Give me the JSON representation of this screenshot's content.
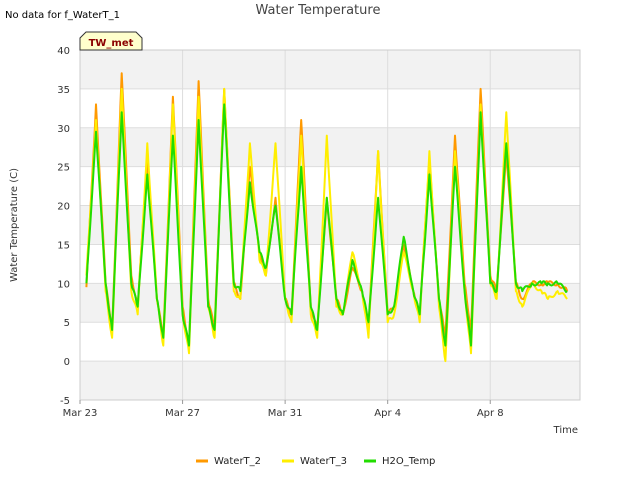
{
  "corner_note": "No data for f_WaterT_1",
  "badge": "TW_met",
  "chart_data": {
    "type": "line",
    "title": "Water Temperature",
    "xlabel": "Time",
    "ylabel": "Water Temperature (C)",
    "ylim": [
      -5,
      40
    ],
    "xlim": [
      "2023-03-23T00:00",
      "2023-04-11T12:00"
    ],
    "y_ticks": [
      "-5",
      "0",
      "5",
      "10",
      "15",
      "20",
      "25",
      "30",
      "35",
      "40"
    ],
    "x_ticks": [
      {
        "label": "Mar 23",
        "date": "2023-03-23"
      },
      {
        "label": "Mar 27",
        "date": "2023-03-27"
      },
      {
        "label": "Mar 31",
        "date": "2023-03-31"
      },
      {
        "label": "Apr 4",
        "date": "2023-04-04"
      },
      {
        "label": "Apr 8",
        "date": "2023-04-08"
      }
    ],
    "grid": true,
    "legend_position": "bottom",
    "colors": {
      "WaterT_2": "#ff9900",
      "WaterT_3": "#ffee00",
      "H2O_Temp": "#22dd00"
    },
    "series": [
      {
        "name": "WaterT_2",
        "x": [
          "2023-03-23T06:00",
          "2023-03-23T15:00",
          "2023-03-24T00:00",
          "2023-03-24T06:00",
          "2023-03-24T15:00",
          "2023-03-25T00:00",
          "2023-03-25T06:00",
          "2023-03-25T15:00",
          "2023-03-26T00:00",
          "2023-03-26T06:00",
          "2023-03-26T15:00",
          "2023-03-27T00:00",
          "2023-03-27T06:00",
          "2023-03-27T15:00",
          "2023-03-28T00:00",
          "2023-03-28T06:00",
          "2023-03-28T15:00",
          "2023-03-29T00:00",
          "2023-03-29T06:00",
          "2023-03-29T15:00",
          "2023-03-30T00:00",
          "2023-03-30T06:00",
          "2023-03-30T15:00",
          "2023-03-31T00:00",
          "2023-03-31T06:00",
          "2023-03-31T15:00",
          "2023-04-01T00:00",
          "2023-04-01T06:00",
          "2023-04-01T15:00",
          "2023-04-02T00:00",
          "2023-04-02T06:00",
          "2023-04-02T15:00",
          "2023-04-03T00:00",
          "2023-04-03T06:00",
          "2023-04-03T15:00",
          "2023-04-04T00:00",
          "2023-04-04T06:00",
          "2023-04-04T15:00",
          "2023-04-05T00:00",
          "2023-04-05T06:00",
          "2023-04-05T15:00",
          "2023-04-06T00:00",
          "2023-04-06T06:00",
          "2023-04-06T15:00",
          "2023-04-07T00:00",
          "2023-04-07T06:00",
          "2023-04-07T15:00",
          "2023-04-08T00:00",
          "2023-04-08T06:00",
          "2023-04-08T15:00",
          "2023-04-09T00:00",
          "2023-04-09T06:00",
          "2023-04-09T15:00",
          "2023-04-10T00:00",
          "2023-04-10T06:00",
          "2023-04-10T15:00",
          "2023-04-11T00:00"
        ],
        "y": [
          9.5,
          33,
          10,
          4,
          37,
          11,
          7,
          26,
          8,
          3,
          34,
          7,
          2,
          36,
          8,
          4,
          35,
          10,
          8,
          25,
          14,
          11,
          21,
          8,
          6,
          31,
          7,
          4,
          21,
          8,
          6,
          12,
          9,
          4,
          27,
          6,
          7,
          15,
          9,
          6,
          26,
          8,
          3,
          29,
          10,
          4,
          35,
          11,
          9,
          27,
          10,
          8,
          10,
          10,
          10,
          10,
          9
        ]
      },
      {
        "name": "WaterT_3",
        "x": [
          "2023-03-23T06:00",
          "2023-03-23T15:00",
          "2023-03-24T00:00",
          "2023-03-24T06:00",
          "2023-03-24T15:00",
          "2023-03-25T00:00",
          "2023-03-25T06:00",
          "2023-03-25T15:00",
          "2023-03-26T00:00",
          "2023-03-26T06:00",
          "2023-03-26T15:00",
          "2023-03-27T00:00",
          "2023-03-27T06:00",
          "2023-03-27T15:00",
          "2023-03-28T00:00",
          "2023-03-28T06:00",
          "2023-03-28T15:00",
          "2023-03-29T00:00",
          "2023-03-29T06:00",
          "2023-03-29T15:00",
          "2023-03-30T00:00",
          "2023-03-30T06:00",
          "2023-03-30T15:00",
          "2023-03-31T00:00",
          "2023-03-31T06:00",
          "2023-03-31T15:00",
          "2023-04-01T00:00",
          "2023-04-01T06:00",
          "2023-04-01T15:00",
          "2023-04-02T00:00",
          "2023-04-02T06:00",
          "2023-04-02T15:00",
          "2023-04-03T00:00",
          "2023-04-03T06:00",
          "2023-04-03T15:00",
          "2023-04-04T00:00",
          "2023-04-04T06:00",
          "2023-04-04T15:00",
          "2023-04-05T00:00",
          "2023-04-05T06:00",
          "2023-04-05T15:00",
          "2023-04-06T00:00",
          "2023-04-06T06:00",
          "2023-04-06T15:00",
          "2023-04-07T00:00",
          "2023-04-07T06:00",
          "2023-04-07T15:00",
          "2023-04-08T00:00",
          "2023-04-08T06:00",
          "2023-04-08T15:00",
          "2023-04-09T00:00",
          "2023-04-09T06:00",
          "2023-04-09T15:00",
          "2023-04-10T00:00",
          "2023-04-10T06:00",
          "2023-04-10T15:00",
          "2023-04-11T00:00"
        ],
        "y": [
          11,
          31,
          9,
          3,
          35,
          9,
          6,
          28,
          8,
          2,
          33,
          6,
          1,
          34,
          7,
          3,
          35,
          9,
          8,
          28,
          13,
          11,
          28,
          8,
          5,
          29,
          6,
          3,
          29,
          7,
          6,
          14,
          9,
          3,
          27,
          5,
          6,
          14,
          9,
          5,
          27,
          7,
          0,
          27,
          9,
          1,
          33,
          10,
          8,
          32,
          9,
          7,
          10,
          9,
          8,
          9,
          8
        ]
      },
      {
        "name": "H2O_Temp",
        "x": [
          "2023-03-23T06:00",
          "2023-03-23T15:00",
          "2023-03-24T00:00",
          "2023-03-24T06:00",
          "2023-03-24T15:00",
          "2023-03-25T00:00",
          "2023-03-25T06:00",
          "2023-03-25T15:00",
          "2023-03-26T00:00",
          "2023-03-26T06:00",
          "2023-03-26T15:00",
          "2023-03-27T00:00",
          "2023-03-27T06:00",
          "2023-03-27T15:00",
          "2023-03-28T00:00",
          "2023-03-28T06:00",
          "2023-03-28T15:00",
          "2023-03-29T00:00",
          "2023-03-29T06:00",
          "2023-03-29T15:00",
          "2023-03-30T00:00",
          "2023-03-30T06:00",
          "2023-03-30T15:00",
          "2023-03-31T00:00",
          "2023-03-31T06:00",
          "2023-03-31T15:00",
          "2023-04-01T00:00",
          "2023-04-01T06:00",
          "2023-04-01T15:00",
          "2023-04-02T00:00",
          "2023-04-02T06:00",
          "2023-04-02T15:00",
          "2023-04-03T00:00",
          "2023-04-03T06:00",
          "2023-04-03T15:00",
          "2023-04-04T00:00",
          "2023-04-04T06:00",
          "2023-04-04T15:00",
          "2023-04-05T00:00",
          "2023-04-05T06:00",
          "2023-04-05T15:00",
          "2023-04-06T00:00",
          "2023-04-06T06:00",
          "2023-04-06T15:00",
          "2023-04-07T00:00",
          "2023-04-07T06:00",
          "2023-04-07T15:00",
          "2023-04-08T00:00",
          "2023-04-08T06:00",
          "2023-04-08T15:00",
          "2023-04-09T00:00",
          "2023-04-09T06:00",
          "2023-04-09T15:00",
          "2023-04-10T00:00",
          "2023-04-10T06:00",
          "2023-04-10T15:00",
          "2023-04-11T00:00"
        ],
        "y": [
          10,
          29.5,
          10,
          4,
          32,
          10,
          7,
          24,
          8,
          3,
          29,
          6,
          2,
          31,
          7,
          4,
          33,
          10,
          9,
          23,
          14,
          12,
          20,
          8,
          6,
          25,
          7,
          4,
          21,
          8,
          6,
          13,
          9,
          5,
          21,
          6,
          7,
          16,
          9,
          6,
          24,
          8,
          2,
          25,
          9,
          2,
          32,
          10,
          9,
          28,
          10,
          9,
          10,
          10,
          10,
          10,
          9
        ]
      }
    ]
  }
}
